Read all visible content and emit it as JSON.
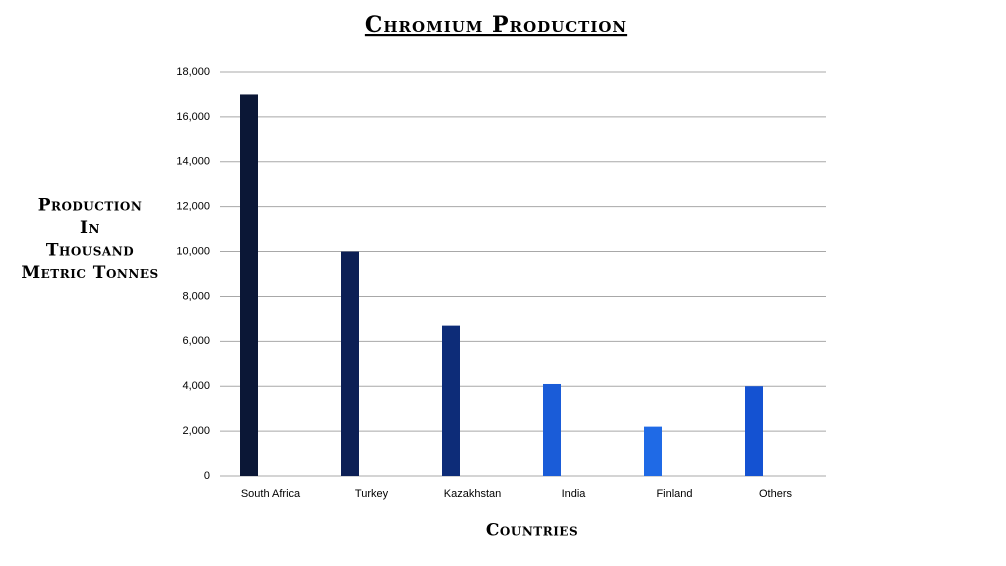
{
  "chart_data": {
    "type": "bar",
    "title": "Chromium Production",
    "y_label": [
      "Production",
      "In",
      "Thousand",
      "Metric Tonnes"
    ],
    "x_label": "Countries",
    "categories": [
      "South Africa",
      "Turkey",
      "Kazakhstan",
      "India",
      "Finland",
      "Others"
    ],
    "values": [
      17000,
      10000,
      6700,
      4100,
      2200,
      4000
    ],
    "colors": [
      "#0b1736",
      "#0c1f55",
      "#0d2c78",
      "#1a5cd8",
      "#1f6ae6",
      "#1452d2"
    ],
    "ylim": [
      0,
      18000
    ],
    "yticks": [
      0,
      {
        "value": 2000,
        "label": "2,000"
      },
      {
        "value": 4000,
        "label": "4,000"
      },
      {
        "value": 6000,
        "label": "6,000"
      },
      {
        "value": 8000,
        "label": "8,000"
      },
      {
        "value": 10000,
        "label": "10,000"
      },
      {
        "value": 12000,
        "label": "12,000"
      },
      {
        "value": 14000,
        "label": "14,000"
      },
      {
        "value": 16000,
        "label": "16,000"
      },
      {
        "value": 18000,
        "label": "18,000"
      }
    ],
    "grid": true
  }
}
